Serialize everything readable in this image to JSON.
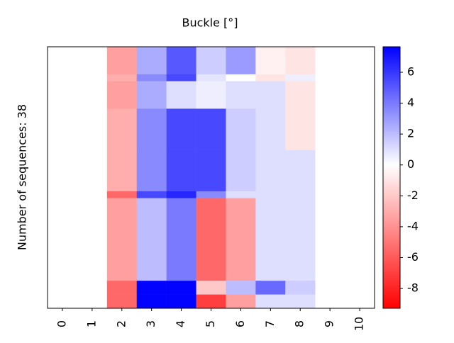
{
  "chart_data": {
    "type": "heatmap",
    "title": "Buckle [°]",
    "ylabel": "Number of sequences: 38",
    "x": [
      0,
      1,
      2,
      3,
      4,
      5,
      6,
      7,
      8,
      9,
      10
    ],
    "y_edges": [
      0,
      4,
      5,
      9,
      15,
      21,
      22,
      34,
      36,
      38
    ],
    "values": [
      [
        null,
        null,
        -3.5,
        2.5,
        5,
        1.5,
        3,
        -0.5,
        -1,
        null,
        null
      ],
      [
        null,
        null,
        -3,
        3.5,
        5.5,
        0.8,
        0,
        -1,
        0.5,
        null,
        null
      ],
      [
        null,
        null,
        -3.5,
        2.5,
        1,
        0.5,
        1,
        1,
        -1,
        null,
        null
      ],
      [
        null,
        null,
        -3,
        3.5,
        5.5,
        5.5,
        1.5,
        1,
        -1,
        null,
        null
      ],
      [
        null,
        null,
        -3,
        3.5,
        5.5,
        5.5,
        1.5,
        1,
        1,
        null,
        null
      ],
      [
        null,
        null,
        -5.5,
        5.5,
        6.5,
        3.5,
        1,
        1,
        1,
        null,
        null
      ],
      [
        null,
        null,
        -3.5,
        2,
        4,
        -5.5,
        -3.5,
        1,
        1,
        null,
        null
      ],
      [
        null,
        null,
        -5.5,
        7.6,
        7.6,
        -2,
        2,
        4.5,
        1.5,
        null,
        null
      ],
      [
        null,
        null,
        -5.5,
        7.6,
        7.6,
        -7,
        -3.5,
        1,
        1,
        null,
        null
      ]
    ],
    "cmap": "bwr",
    "vcenter": 0,
    "clim": [
      -9.28,
      7.65
    ],
    "cticks": [
      -8,
      -6,
      -4,
      -2,
      0,
      2,
      4,
      6
    ]
  }
}
